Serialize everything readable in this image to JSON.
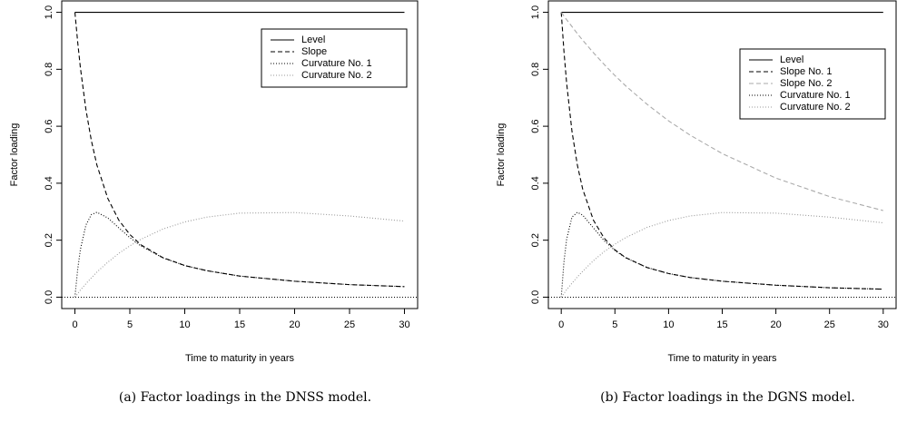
{
  "chart_data": [
    {
      "type": "line",
      "caption": "(a) Factor loadings in the DNSS model.",
      "xlabel": "Time to maturity in years",
      "ylabel": "Factor loading",
      "x": [
        0,
        0.25,
        0.5,
        1,
        1.5,
        2,
        3,
        4,
        5,
        6,
        8,
        10,
        12,
        15,
        20,
        25,
        30
      ],
      "series": [
        {
          "name": "Level",
          "color": "#000000",
          "linestyle": "solid",
          "values": [
            1,
            1,
            1,
            1,
            1,
            1,
            1,
            1,
            1,
            1,
            1,
            1,
            1,
            1,
            1,
            1,
            1
          ]
        },
        {
          "name": "Slope",
          "color": "#000000",
          "linestyle": "dashed",
          "values": [
            1,
            0.896,
            0.805,
            0.659,
            0.549,
            0.464,
            0.346,
            0.27,
            0.22,
            0.184,
            0.139,
            0.111,
            0.093,
            0.074,
            0.056,
            0.044,
            0.037
          ]
        },
        {
          "name": "Curvature No. 1",
          "color": "#000000",
          "linestyle": "dotted",
          "values": [
            0,
            0.097,
            0.168,
            0.253,
            0.29,
            0.298,
            0.278,
            0.243,
            0.209,
            0.18,
            0.138,
            0.111,
            0.093,
            0.074,
            0.056,
            0.044,
            0.037
          ]
        },
        {
          "name": "Curvature No. 2",
          "color": "#999999",
          "linestyle": "dotted",
          "values": [
            0,
            0.012,
            0.025,
            0.047,
            0.068,
            0.088,
            0.123,
            0.154,
            0.18,
            0.203,
            0.239,
            0.264,
            0.281,
            0.295,
            0.297,
            0.285,
            0.267
          ]
        }
      ],
      "xlim": [
        -1.2,
        31.2
      ],
      "ylim": [
        -0.04,
        1.04
      ],
      "xticks": [
        0,
        5,
        10,
        15,
        20,
        25,
        30
      ],
      "yticks": [
        {
          "value": 0,
          "label": "0.0"
        },
        0.2,
        0.4,
        0.6,
        0.8,
        {
          "value": 1,
          "label": "1.0"
        }
      ],
      "legend": "upper right"
    },
    {
      "type": "line",
      "caption": "(b) Factor loadings in the DGNS model.",
      "xlabel": "Time to maturity in years",
      "ylabel": "Factor loading",
      "x": [
        0,
        0.25,
        0.5,
        1,
        1.5,
        2,
        3,
        4,
        5,
        6,
        8,
        10,
        12,
        15,
        20,
        25,
        30
      ],
      "series": [
        {
          "name": "Level",
          "color": "#000000",
          "linestyle": "solid",
          "values": [
            1,
            1,
            1,
            1,
            1,
            1,
            1,
            1,
            1,
            1,
            1,
            1,
            1,
            1,
            1,
            1,
            1
          ]
        },
        {
          "name": "Slope No. 1",
          "color": "#000000",
          "linestyle": "dashed",
          "values": [
            1,
            0.864,
            0.752,
            0.582,
            0.464,
            0.379,
            0.27,
            0.207,
            0.166,
            0.139,
            0.104,
            0.083,
            0.069,
            0.056,
            0.042,
            0.033,
            0.028
          ]
        },
        {
          "name": "Slope No. 2",
          "color": "#aaaaaa",
          "linestyle": "dashed",
          "values": [
            1,
            0.987,
            0.974,
            0.95,
            0.925,
            0.902,
            0.858,
            0.817,
            0.778,
            0.742,
            0.677,
            0.619,
            0.569,
            0.504,
            0.418,
            0.353,
            0.304
          ]
        },
        {
          "name": "Curvature No. 1",
          "color": "#000000",
          "linestyle": "dotted",
          "values": [
            0,
            0.123,
            0.203,
            0.281,
            0.298,
            0.288,
            0.243,
            0.198,
            0.164,
            0.138,
            0.104,
            0.083,
            0.069,
            0.056,
            0.042,
            0.033,
            0.028
          ]
        },
        {
          "name": "Curvature No. 2",
          "color": "#999999",
          "linestyle": "dotted",
          "values": [
            0,
            0.013,
            0.026,
            0.049,
            0.071,
            0.091,
            0.128,
            0.16,
            0.186,
            0.209,
            0.245,
            0.269,
            0.285,
            0.297,
            0.295,
            0.281,
            0.261
          ]
        }
      ],
      "xlim": [
        -1.2,
        31.2
      ],
      "ylim": [
        -0.04,
        1.04
      ],
      "xticks": [
        0,
        5,
        10,
        15,
        20,
        25,
        30
      ],
      "yticks": [
        {
          "value": 0,
          "label": "0.0"
        },
        0.2,
        0.4,
        0.6,
        0.8,
        {
          "value": 1,
          "label": "1.0"
        }
      ],
      "legend": "upper right"
    }
  ]
}
